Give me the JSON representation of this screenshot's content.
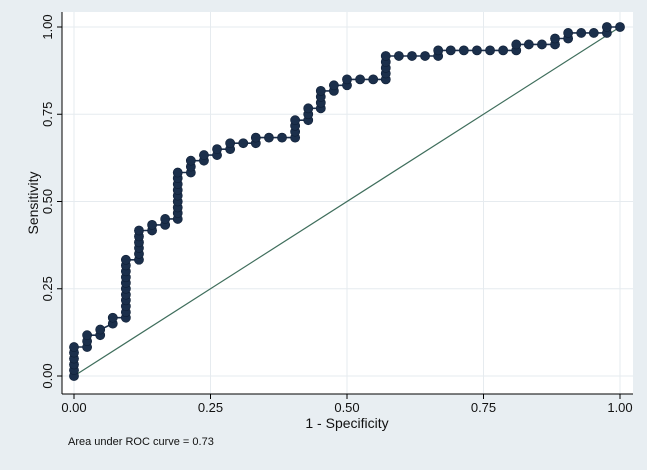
{
  "chart_data": {
    "type": "line",
    "title": "",
    "xlabel": "1 - Specificity",
    "ylabel": "Sensitivity",
    "xlim": [
      0,
      1
    ],
    "ylim": [
      0,
      1
    ],
    "xticks": [
      "0.00",
      "0.25",
      "0.50",
      "0.75",
      "1.00"
    ],
    "yticks": [
      "0.00",
      "0.25",
      "0.50",
      "0.75",
      "1.00"
    ],
    "grid": true,
    "note": "Area under ROC curve = 0.73",
    "colors": {
      "background": "#e8eef2",
      "plot_background": "#ffffff",
      "grid": "#e6ebef",
      "curve": "#1b2f4b",
      "reference_line": "#3f6e5c"
    },
    "series": [
      {
        "points": [
          [
            0.0,
            0.0
          ],
          [
            0.0,
            0.017
          ],
          [
            0.0,
            0.033
          ],
          [
            0.0,
            0.05
          ],
          [
            0.0,
            0.067
          ],
          [
            0.0,
            0.083
          ],
          [
            0.024,
            0.083
          ],
          [
            0.024,
            0.1
          ],
          [
            0.024,
            0.117
          ],
          [
            0.048,
            0.117
          ],
          [
            0.048,
            0.133
          ],
          [
            0.071,
            0.15
          ],
          [
            0.071,
            0.167
          ],
          [
            0.095,
            0.167
          ],
          [
            0.095,
            0.183
          ],
          [
            0.095,
            0.2
          ],
          [
            0.095,
            0.217
          ],
          [
            0.095,
            0.233
          ],
          [
            0.095,
            0.25
          ],
          [
            0.095,
            0.267
          ],
          [
            0.095,
            0.283
          ],
          [
            0.095,
            0.3
          ],
          [
            0.095,
            0.317
          ],
          [
            0.095,
            0.333
          ],
          [
            0.119,
            0.333
          ],
          [
            0.119,
            0.35
          ],
          [
            0.119,
            0.367
          ],
          [
            0.119,
            0.383
          ],
          [
            0.119,
            0.4
          ],
          [
            0.119,
            0.417
          ],
          [
            0.143,
            0.417
          ],
          [
            0.143,
            0.433
          ],
          [
            0.167,
            0.433
          ],
          [
            0.167,
            0.45
          ],
          [
            0.19,
            0.45
          ],
          [
            0.19,
            0.467
          ],
          [
            0.19,
            0.483
          ],
          [
            0.19,
            0.5
          ],
          [
            0.19,
            0.517
          ],
          [
            0.19,
            0.533
          ],
          [
            0.19,
            0.55
          ],
          [
            0.19,
            0.567
          ],
          [
            0.19,
            0.583
          ],
          [
            0.214,
            0.583
          ],
          [
            0.214,
            0.6
          ],
          [
            0.214,
            0.617
          ],
          [
            0.238,
            0.617
          ],
          [
            0.238,
            0.633
          ],
          [
            0.262,
            0.633
          ],
          [
            0.262,
            0.65
          ],
          [
            0.286,
            0.65
          ],
          [
            0.286,
            0.667
          ],
          [
            0.31,
            0.667
          ],
          [
            0.333,
            0.667
          ],
          [
            0.333,
            0.683
          ],
          [
            0.357,
            0.683
          ],
          [
            0.381,
            0.683
          ],
          [
            0.405,
            0.683
          ],
          [
            0.405,
            0.7
          ],
          [
            0.405,
            0.717
          ],
          [
            0.405,
            0.733
          ],
          [
            0.429,
            0.733
          ],
          [
            0.429,
            0.75
          ],
          [
            0.429,
            0.767
          ],
          [
            0.452,
            0.767
          ],
          [
            0.452,
            0.783
          ],
          [
            0.452,
            0.8
          ],
          [
            0.452,
            0.817
          ],
          [
            0.476,
            0.817
          ],
          [
            0.476,
            0.833
          ],
          [
            0.5,
            0.833
          ],
          [
            0.5,
            0.85
          ],
          [
            0.524,
            0.85
          ],
          [
            0.548,
            0.85
          ],
          [
            0.571,
            0.85
          ],
          [
            0.571,
            0.867
          ],
          [
            0.571,
            0.883
          ],
          [
            0.571,
            0.9
          ],
          [
            0.571,
            0.917
          ],
          [
            0.595,
            0.917
          ],
          [
            0.619,
            0.917
          ],
          [
            0.643,
            0.917
          ],
          [
            0.667,
            0.917
          ],
          [
            0.667,
            0.933
          ],
          [
            0.69,
            0.933
          ],
          [
            0.714,
            0.933
          ],
          [
            0.738,
            0.933
          ],
          [
            0.762,
            0.933
          ],
          [
            0.786,
            0.933
          ],
          [
            0.81,
            0.933
          ],
          [
            0.81,
            0.95
          ],
          [
            0.833,
            0.95
          ],
          [
            0.857,
            0.95
          ],
          [
            0.881,
            0.95
          ],
          [
            0.881,
            0.967
          ],
          [
            0.905,
            0.967
          ],
          [
            0.905,
            0.983
          ],
          [
            0.929,
            0.983
          ],
          [
            0.952,
            0.983
          ],
          [
            0.976,
            0.983
          ],
          [
            0.976,
            1.0
          ],
          [
            1.0,
            1.0
          ]
        ]
      },
      {
        "points": [
          [
            0,
            0
          ],
          [
            1,
            1
          ]
        ]
      }
    ]
  }
}
